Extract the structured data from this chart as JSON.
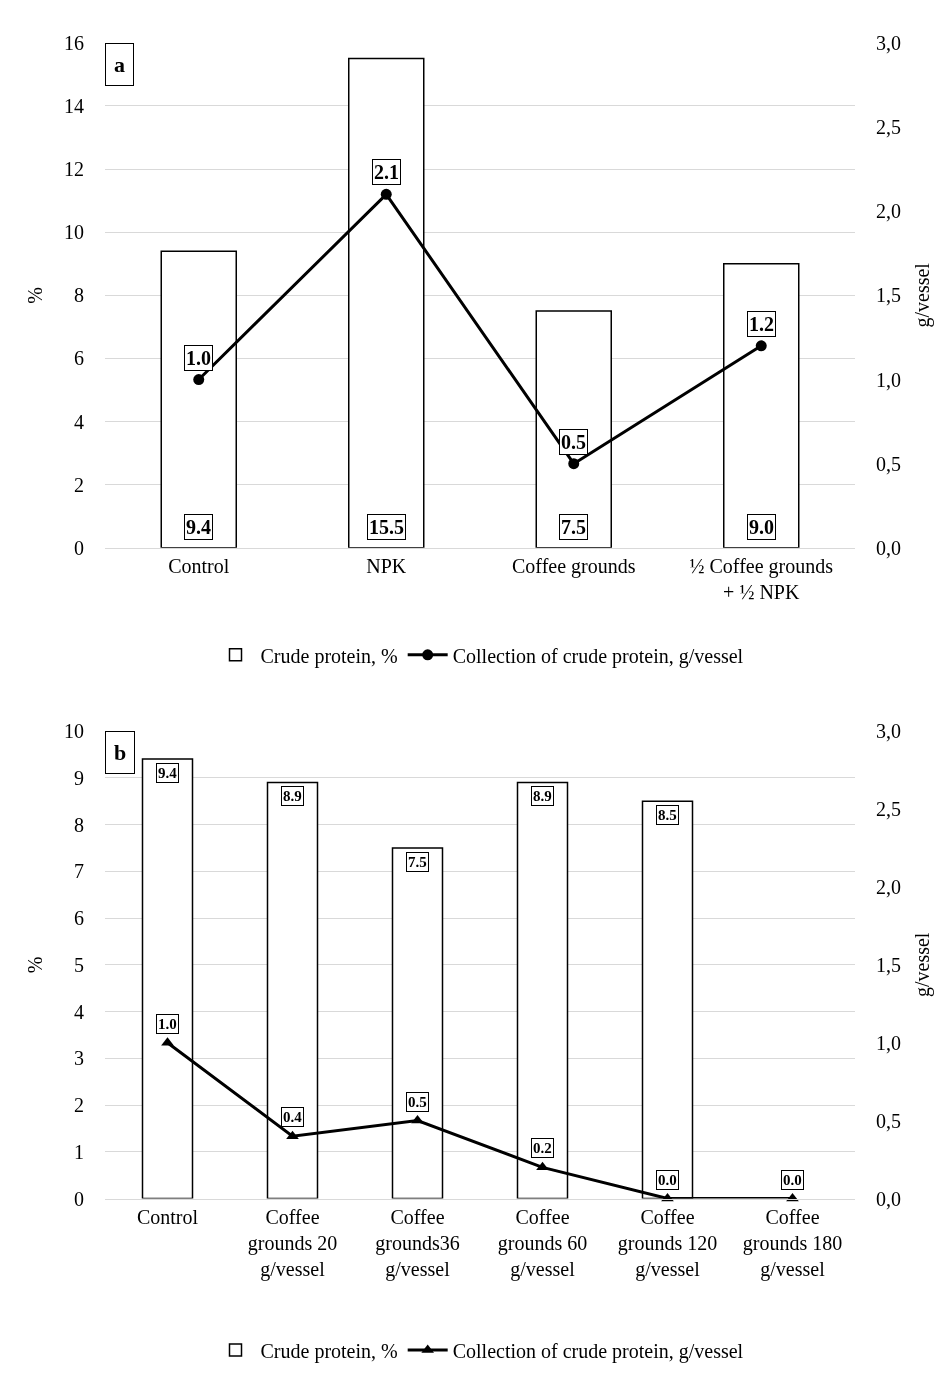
{
  "chart_data": [
    {
      "type": "bar",
      "annotations": [
        "a"
      ],
      "ylabel": "%",
      "y2label": "g/vessel",
      "categories": [
        "Control",
        "NPK",
        "Coffee grounds",
        "½ Coffee grounds + ½ NPK"
      ],
      "series": [
        {
          "name": "Crude protein, %",
          "color": "#ffffff",
          "values": [
            9.4,
            15.5,
            7.5,
            9.0
          ],
          "value_labels": [
            "9.4",
            "15.5",
            "7.5",
            "9.0"
          ]
        },
        {
          "name": "Collection of crude protein, g/vessel",
          "type": "line",
          "axis": "y2",
          "color": "#000000",
          "marker": "circle",
          "values": [
            1.0,
            2.1,
            0.5,
            1.2
          ],
          "value_labels": [
            "1.0",
            "2.1",
            "0.5",
            "1.2"
          ]
        }
      ],
      "ylim": [
        0,
        16
      ],
      "yticks": [
        0,
        2,
        4,
        6,
        8,
        10,
        12,
        14,
        16
      ],
      "y2lim": [
        0,
        3
      ],
      "y2ticks": [
        {
          "value": 0,
          "label": "0,0"
        },
        {
          "value": 0.5,
          "label": "0,5"
        },
        {
          "value": 1,
          "label": "1,0"
        },
        {
          "value": 1.5,
          "label": "1,5"
        },
        {
          "value": 2,
          "label": "2,0"
        },
        {
          "value": 2.5,
          "label": "2,5"
        },
        {
          "value": 3,
          "label": "3,0"
        }
      ],
      "grid": "y",
      "legend": "bottom"
    },
    {
      "type": "bar",
      "annotations": [
        "b"
      ],
      "ylabel": "%",
      "y2label": "g/vessel",
      "categories": [
        "Control",
        "Coffee grounds 20 g/vessel",
        "Coffee grounds36 g/vessel",
        "Coffee grounds 60 g/vessel",
        "Coffee grounds 120 g/vessel",
        "Coffee grounds 180 g/vessel"
      ],
      "series": [
        {
          "name": "Crude protein, %",
          "color": "#ffffff",
          "values": [
            9.4,
            8.9,
            7.5,
            8.9,
            8.5,
            null
          ],
          "value_labels": [
            "9.4",
            "8.9",
            "7.5",
            "8.9",
            "8.5",
            null
          ]
        },
        {
          "name": "Collection of crude protein, g/vessel",
          "type": "line",
          "axis": "y2",
          "color": "#000000",
          "marker": "triangle",
          "values": [
            1.0,
            0.4,
            0.5,
            0.2,
            0.0,
            0.0
          ],
          "value_labels": [
            "1.0",
            "0.4",
            "0.5",
            "0.2",
            "0.0",
            "0.0"
          ]
        }
      ],
      "ylim": [
        0,
        10
      ],
      "yticks": [
        0,
        1,
        2,
        3,
        4,
        5,
        6,
        7,
        8,
        9,
        10
      ],
      "y2lim": [
        0,
        3
      ],
      "y2ticks": [
        {
          "value": 0,
          "label": "0,0"
        },
        {
          "value": 0.5,
          "label": "0,5"
        },
        {
          "value": 1,
          "label": "1,0"
        },
        {
          "value": 1.5,
          "label": "1,5"
        },
        {
          "value": 2,
          "label": "2,0"
        },
        {
          "value": 2.5,
          "label": "2,5"
        },
        {
          "value": 3,
          "label": "3,0"
        }
      ],
      "grid": "y",
      "legend": "bottom"
    }
  ]
}
